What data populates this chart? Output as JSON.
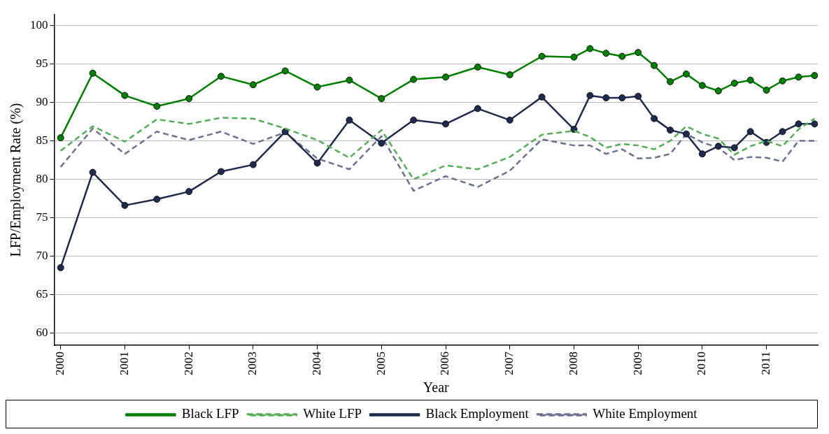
{
  "chart_data": {
    "type": "line",
    "xlabel": "Year",
    "ylabel": "LFP/Employment Rate (%)",
    "x": [
      2000,
      2000.5,
      2001,
      2001.5,
      2002,
      2002.5,
      2003,
      2003.5,
      2004,
      2004.5,
      2005,
      2005.5,
      2006,
      2006.5,
      2007,
      2007.5,
      2008,
      2008.25,
      2008.5,
      2008.75,
      2009,
      2009.25,
      2009.5,
      2009.75,
      2010,
      2010.25,
      2010.5,
      2010.75,
      2011,
      2011.25,
      2011.5,
      2011.75
    ],
    "series": [
      {
        "name": "Black LFP",
        "color": "#008000",
        "line_style": "solid",
        "marker": "circle",
        "values": [
          85.4,
          93.8,
          90.9,
          89.5,
          90.5,
          93.4,
          92.3,
          94.1,
          92.0,
          92.9,
          90.5,
          93.0,
          93.3,
          94.6,
          93.6,
          96.0,
          95.9,
          97.0,
          96.4,
          96.0,
          96.5,
          94.8,
          92.7,
          93.7,
          92.2,
          91.5,
          92.5,
          92.9,
          91.6,
          92.8,
          93.3,
          93.5
        ]
      },
      {
        "name": "White LFP",
        "color": "#55b055",
        "line_style": "dashed",
        "marker": "none",
        "values": [
          83.7,
          86.9,
          84.9,
          87.8,
          87.2,
          88.0,
          87.9,
          86.6,
          85.1,
          82.8,
          86.4,
          80.0,
          81.8,
          81.3,
          82.9,
          85.8,
          86.3,
          85.5,
          84.1,
          84.6,
          84.4,
          83.9,
          85.0,
          86.9,
          85.9,
          85.3,
          83.2,
          84.3,
          85.0,
          84.3,
          86.5,
          87.9
        ]
      },
      {
        "name": "Black Employment",
        "color": "#1f2a4f",
        "line_style": "solid",
        "marker": "circle",
        "values": [
          68.5,
          80.9,
          76.6,
          77.4,
          78.4,
          81.0,
          81.9,
          86.2,
          82.1,
          87.7,
          84.7,
          87.7,
          87.2,
          89.2,
          87.7,
          90.7,
          86.5,
          90.9,
          90.6,
          90.6,
          90.8,
          87.9,
          86.4,
          85.9,
          83.3,
          84.3,
          84.1,
          86.2,
          84.8,
          86.2,
          87.2,
          87.2
        ]
      },
      {
        "name": "White Employment",
        "color": "#6b7391",
        "line_style": "dashed",
        "marker": "none",
        "values": [
          81.6,
          86.6,
          83.3,
          86.2,
          85.1,
          86.2,
          84.6,
          86.1,
          82.7,
          81.3,
          85.6,
          78.5,
          80.4,
          79.0,
          81.1,
          85.2,
          84.4,
          84.4,
          83.3,
          83.9,
          82.7,
          82.8,
          83.3,
          85.9,
          84.8,
          84.1,
          82.5,
          82.9,
          82.8,
          82.3,
          85.0,
          85.0
        ]
      }
    ],
    "xlim": [
      1999.9,
      2011.8
    ],
    "xticks": [
      2000,
      2001,
      2002,
      2003,
      2004,
      2005,
      2006,
      2007,
      2008,
      2009,
      2010,
      2011
    ],
    "ylim": [
      58.4,
      101.4
    ],
    "yticks": [
      60,
      65,
      70,
      75,
      80,
      85,
      90,
      95,
      100
    ],
    "grid": "y",
    "legend": "bottom"
  }
}
